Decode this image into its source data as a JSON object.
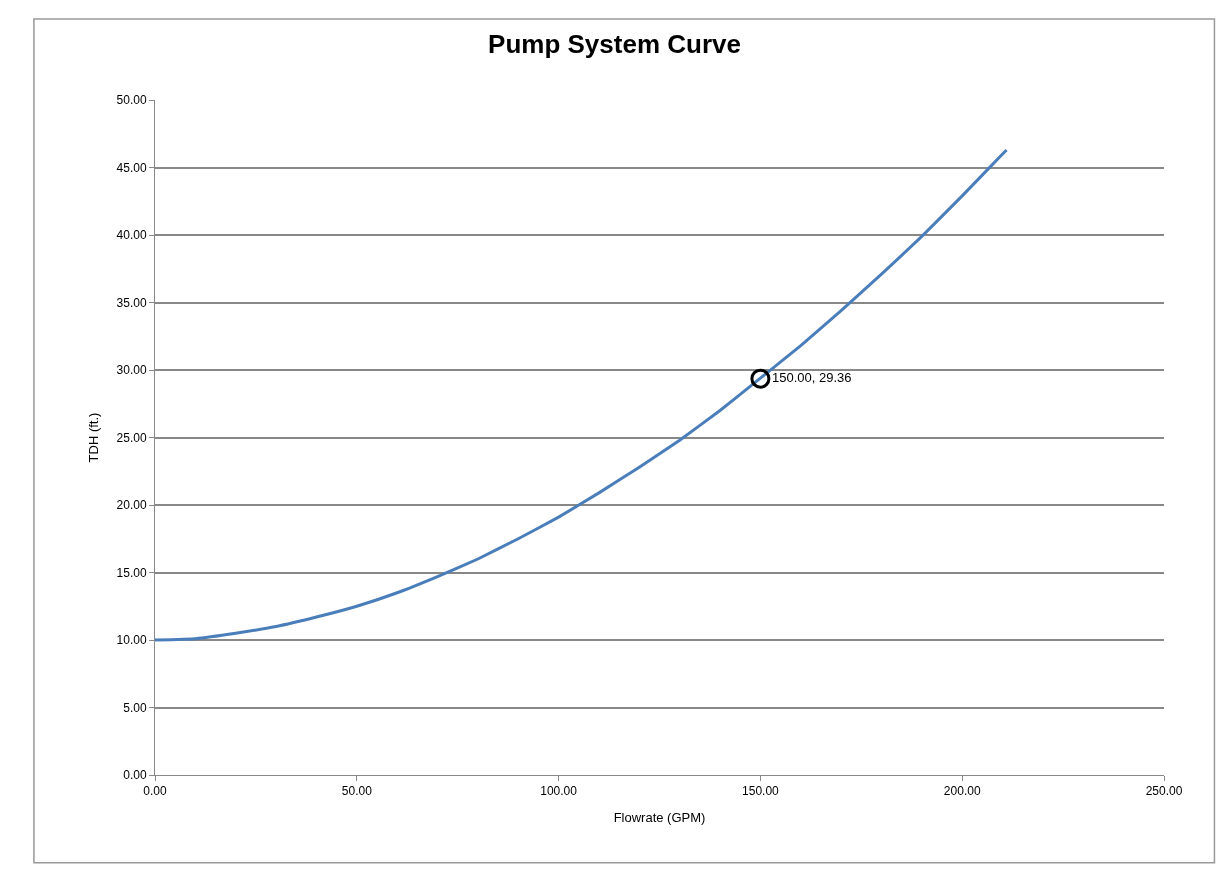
{
  "chart_data": {
    "type": "line",
    "title": "Pump System Curve",
    "xlabel": "Flowrate (GPM)",
    "ylabel": "TDH (ft.)",
    "xlim": [
      0,
      250
    ],
    "ylim": [
      0,
      50
    ],
    "xticks": [
      {
        "value": 0,
        "label": "0.00"
      },
      {
        "value": 50,
        "label": "50.00"
      },
      {
        "value": 100,
        "label": "100.00"
      },
      {
        "value": 150,
        "label": "150.00"
      },
      {
        "value": 200,
        "label": "200.00"
      },
      {
        "value": 250,
        "label": "250.00"
      }
    ],
    "yticks": [
      {
        "value": 0,
        "label": "0.00"
      },
      {
        "value": 5,
        "label": "5.00"
      },
      {
        "value": 10,
        "label": "10.00"
      },
      {
        "value": 15,
        "label": "15.00"
      },
      {
        "value": 20,
        "label": "20.00"
      },
      {
        "value": 25,
        "label": "25.00"
      },
      {
        "value": 30,
        "label": "30.00"
      },
      {
        "value": 35,
        "label": "35.00"
      },
      {
        "value": 40,
        "label": "40.00"
      },
      {
        "value": 45,
        "label": "45.00"
      },
      {
        "value": 50,
        "label": "50.00"
      }
    ],
    "grid": "y",
    "marker": "none",
    "line_style": "solid",
    "series": [
      {
        "color": "#4a7ebb",
        "x": [
          0,
          10,
          20,
          30,
          40,
          50,
          60,
          70,
          80,
          90,
          100,
          110,
          120,
          130,
          140,
          150,
          160,
          170,
          180,
          190,
          200,
          210,
          211
        ],
        "values": [
          10.0,
          10.1,
          10.5,
          11.0,
          11.7,
          12.5,
          13.5,
          14.7,
          16.0,
          17.5,
          19.1,
          20.9,
          22.8,
          24.8,
          27.0,
          29.4,
          31.8,
          34.4,
          37.1,
          39.9,
          42.9,
          46.0,
          46.3
        ]
      },
      {
        "type": "scatter",
        "marker": "circle",
        "color": "#000000",
        "x": [
          150
        ],
        "values": [
          29.36
        ],
        "value_labels": [
          "150.00, 29.36"
        ]
      }
    ]
  }
}
